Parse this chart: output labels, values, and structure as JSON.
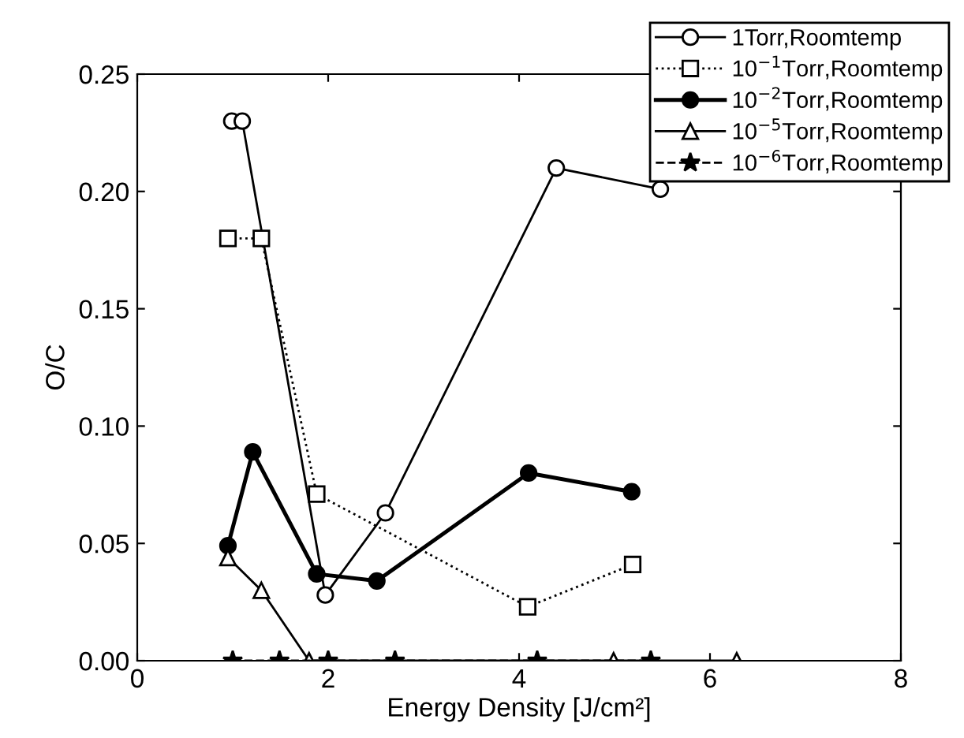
{
  "chart_data": {
    "type": "line",
    "xlabel": "Energy Density [J/cm²]",
    "ylabel": "O/C",
    "xlim": [
      0,
      8
    ],
    "ylim": [
      0,
      0.25
    ],
    "xticks": [
      0,
      2,
      4,
      6,
      8
    ],
    "yticks": [
      {
        "value": 0,
        "label": "0.00"
      },
      {
        "value": 0.05,
        "label": "0.05"
      },
      {
        "value": 0.1,
        "label": "0.10"
      },
      {
        "value": 0.15,
        "label": "0.15"
      },
      {
        "value": 0.2,
        "label": "0.20"
      },
      {
        "value": 0.25,
        "label": "0.25"
      }
    ],
    "grid": false,
    "legend": "top right",
    "series": [
      {
        "name": "1Torr,Roomtemp",
        "color": "#000000",
        "marker": "circle",
        "line_style": "solid",
        "x": [
          0.99,
          1.1,
          1.97,
          2.6,
          4.39,
          5.48
        ],
        "values": [
          0.23,
          0.23,
          0.028,
          0.063,
          0.21,
          0.201
        ]
      },
      {
        "name": "10$^{−1}$Torr,Roomtemp",
        "color": "#000000",
        "marker": "square",
        "line_style": "dotted",
        "x": [
          0.95,
          1.3,
          1.88,
          4.09,
          5.19
        ],
        "values": [
          0.18,
          0.18,
          0.071,
          0.023,
          0.041
        ]
      },
      {
        "name": "10$^{−2}$Torr,Roomtemp",
        "color": "#000000",
        "marker": "circle",
        "line_style": "solid",
        "x": [
          0.95,
          1.21,
          1.88,
          2.51,
          4.1,
          5.18
        ],
        "values": [
          0.049,
          0.089,
          0.037,
          0.034,
          0.08,
          0.072
        ]
      },
      {
        "name": "10$^{−5}$Torr,Roomtemp",
        "color": "#000000",
        "marker": "triangle",
        "line_style": "solid",
        "x": [
          0.95,
          1.3,
          1.8,
          4.99,
          6.28
        ],
        "values": [
          0.044,
          0.03,
          0,
          0,
          0
        ]
      },
      {
        "name": "10$^{−6}$Torr,Roomtemp",
        "color": "#000000",
        "marker": "star",
        "line_style": "dashed",
        "x": [
          1.0,
          1.49,
          2.0,
          2.7,
          4.19,
          5.38
        ],
        "values": [
          0,
          0,
          0,
          0,
          0,
          0
        ]
      }
    ]
  }
}
